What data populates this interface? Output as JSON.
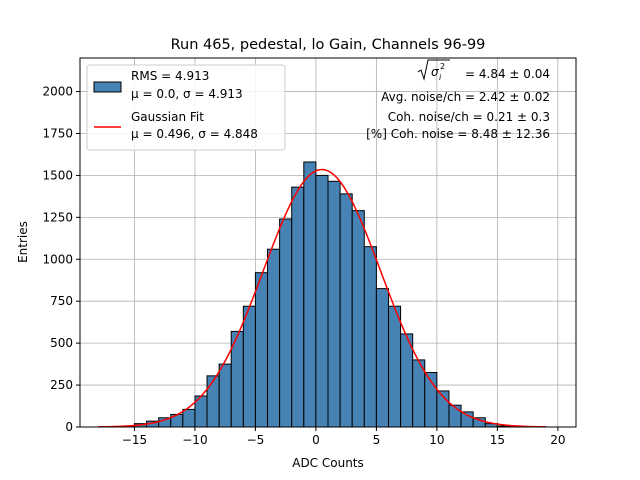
{
  "chart_data": {
    "type": "bar",
    "title": "Run 465, pedestal, lo Gain, Channels 96-99",
    "xlabel": "ADC Counts",
    "ylabel": "Entries",
    "xlim": [
      -19.5,
      21.5
    ],
    "ylim": [
      0,
      2200
    ],
    "xticks": [
      -15,
      -10,
      -5,
      0,
      5,
      10,
      15,
      20
    ],
    "yticks": [
      0,
      250,
      500,
      750,
      1000,
      1250,
      1500,
      1750,
      2000
    ],
    "grid": true,
    "bin_width": 1,
    "bin_left_edges": [
      -17,
      -16,
      -15,
      -14,
      -13,
      -12,
      -11,
      -10,
      -9,
      -8,
      -7,
      -6,
      -5,
      -4,
      -3,
      -2,
      -1,
      0,
      1,
      2,
      3,
      4,
      5,
      6,
      7,
      8,
      9,
      10,
      11,
      12,
      13,
      14,
      15,
      16,
      17,
      18
    ],
    "counts": [
      2,
      3,
      20,
      35,
      55,
      75,
      105,
      185,
      305,
      375,
      570,
      720,
      920,
      1060,
      1240,
      1430,
      1580,
      1500,
      1465,
      1390,
      1290,
      1075,
      825,
      720,
      555,
      400,
      325,
      215,
      130,
      90,
      55,
      20,
      6,
      3,
      1,
      1
    ],
    "series": [
      {
        "name": "RMS = 4.913",
        "name_line2": "μ = 0.0, σ = 4.913",
        "kind": "histogram",
        "fill": "#4682b4",
        "edge": "#000000"
      },
      {
        "name": "Gaussian Fit",
        "name_line2": "μ = 0.496, σ = 4.848",
        "kind": "curve",
        "color": "#ff0000",
        "mu": 0.496,
        "sigma": 4.848,
        "amplitude": 1535,
        "x_range": [
          -18,
          19
        ]
      }
    ],
    "legend_position": "upper left",
    "annotations": [
      "= 4.84 ± 0.04",
      "Avg. noise/ch = 2.42 ± 0.02",
      "Coh. noise/ch = 0.21 ± 0.3",
      "[%] Coh. noise = 8.48 ± 12.36"
    ]
  }
}
